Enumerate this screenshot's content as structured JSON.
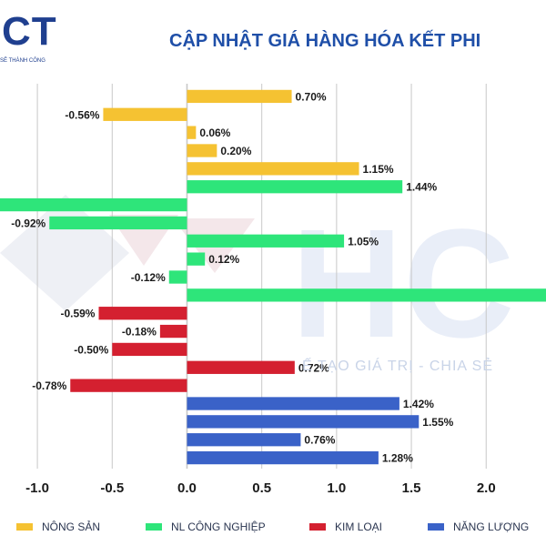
{
  "header": {
    "logo": "CT",
    "logo_sub": "SẼ THÀNH CÔNG",
    "title": "CẬP NHẬT GIÁ HÀNG HÓA KẾT PHI"
  },
  "watermark": {
    "letters": "HC",
    "tagline": "Ế TẠO GIÁ TRỊ - CHIA SẺ"
  },
  "chart_data": {
    "type": "bar",
    "orientation": "horizontal",
    "xlim": [
      -1.25,
      2.4
    ],
    "xticks": [
      -1.0,
      -0.5,
      0.0,
      0.5,
      1.0,
      1.5,
      2.0
    ],
    "xtick_labels": [
      "-1.0",
      "-0.5",
      "0.0",
      "0.5",
      "1.0",
      "1.5",
      "2.0"
    ],
    "grid": true,
    "legend_position": "bottom",
    "series": [
      {
        "name": "NÔNG SẢN",
        "color": "#f5c232",
        "values": [
          0.7,
          -0.56,
          0.06,
          0.2,
          1.15
        ]
      },
      {
        "name": "NL CÔNG NGHIỆP",
        "color": "#2ee57a",
        "values": [
          1.44,
          -1.4,
          -0.92,
          1.05,
          0.12,
          -0.12,
          2.5
        ]
      },
      {
        "name": "KIM LOẠI",
        "color": "#d42030",
        "values": [
          -0.59,
          -0.18,
          -0.5,
          0.72,
          -0.78
        ]
      },
      {
        "name": "NĂNG LƯỢNG",
        "color": "#3a62c8",
        "values": [
          1.42,
          1.55,
          0.76,
          1.28
        ]
      }
    ],
    "data_labels": [
      [
        "0.70%",
        "-0.56%",
        "0.06%",
        "0.20%",
        "1.15%"
      ],
      [
        "1.44%",
        "",
        "-0.92%",
        "1.05%",
        "0.12%",
        "-0.12%",
        ""
      ],
      [
        "-0.59%",
        "-0.18%",
        "-0.50%",
        "0.72%",
        "-0.78%"
      ],
      [
        "1.42%",
        "1.55%",
        "0.76%",
        "1.28%"
      ]
    ]
  },
  "colors": {
    "grid": "#c8c8c8",
    "axis_text": "#1a1a1a",
    "title": "#1f4fa8"
  }
}
